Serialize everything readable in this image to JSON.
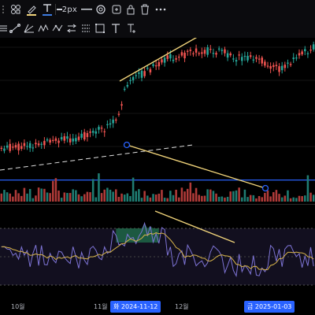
{
  "toolbar": {
    "line_width_label": "2px",
    "icons": [
      "layers-icon",
      "pencil-color-icon",
      "text-color-icon",
      "line-width-icon",
      "line-style-icon",
      "settings-icon",
      "alert-icon",
      "lock-icon",
      "trash-icon",
      "more-icon"
    ]
  },
  "drawing_tools": {
    "icons": [
      "ruler-icon",
      "trend-line-icon",
      "pitchfork-icon",
      "zigzag-icon",
      "pattern-icon",
      "arrows-icon",
      "path-icon",
      "rectangle-icon",
      "text-tool-icon",
      "text-cursor-icon"
    ]
  },
  "time_axis": {
    "labels": [
      "10월",
      "11월",
      "12월"
    ],
    "crosshair_labels": [
      "화 2024-11-12",
      "금 2025-01-03"
    ],
    "crosshair_color": "#2962ff"
  },
  "colors": {
    "up": "#26a69a",
    "down": "#ef5350",
    "trendline": "#f0d37a",
    "rsi": "#7e74d6",
    "signal": "#d8b44a",
    "background": "#000000"
  },
  "chart_data": {
    "type": "candlestick",
    "title": "",
    "candles_count": 110,
    "volume": true,
    "oscillator": "rsi-like"
  }
}
